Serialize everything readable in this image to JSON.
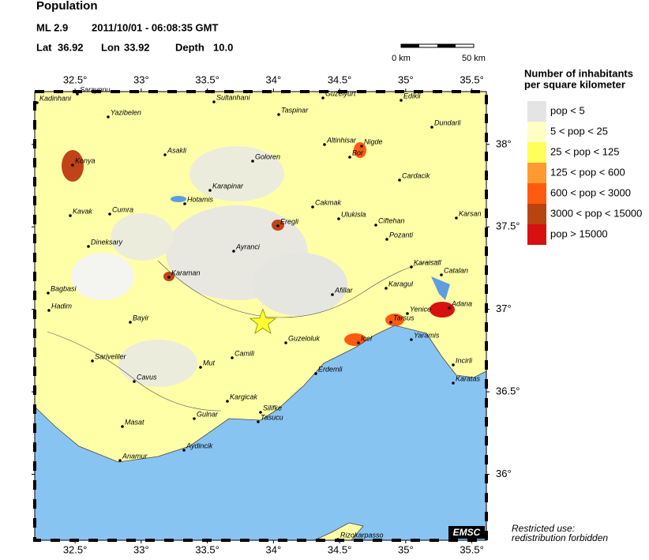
{
  "header": {
    "title": "Population",
    "magnitude": "ML 2.9",
    "datetime": "2011/10/01 - 06:08:35 GMT",
    "lat_label": "Lat",
    "lat": 36.92,
    "lon_label": "Lon",
    "lon": 33.92,
    "depth_label": "Depth",
    "depth": "10.0"
  },
  "scale": {
    "start": "0 km",
    "end": "50 km"
  },
  "map": {
    "lonlim": [
      32.195,
      35.61
    ],
    "latlim": [
      35.6,
      38.32
    ],
    "lon_ticks": [
      {
        "value": 32.5,
        "label": "32.5°"
      },
      {
        "value": 33,
        "label": "33°"
      },
      {
        "value": 33.5,
        "label": "33.5°"
      },
      {
        "value": 34,
        "label": "34°"
      },
      {
        "value": 34.5,
        "label": "34.5°"
      },
      {
        "value": 35,
        "label": "35°"
      },
      {
        "value": 35.5,
        "label": "35.5°"
      }
    ],
    "lat_ticks": [
      {
        "value": 38,
        "label": "38°"
      },
      {
        "value": 37.5,
        "label": "37.5°"
      },
      {
        "value": 37,
        "label": "37°"
      },
      {
        "value": 36.5,
        "label": "36.5°"
      },
      {
        "value": 36,
        "label": "36°"
      }
    ],
    "cities": [
      "Kadinhani",
      "Sarayonu",
      "Yazibelen",
      "Sultanhani",
      "Taspinar",
      "Guzelyurt",
      "Edikli",
      "Dundarli",
      "Konya",
      "Asakli",
      "Goloren",
      "Altinhisar",
      "Nigde",
      "Bor",
      "Karapinar",
      "Hotamis",
      "Cakmak",
      "Cardacik",
      "Kavak",
      "Cumra",
      "Eregli",
      "Ulukisla",
      "Ciftehan",
      "Karsan",
      "Dineksary",
      "Pozanti",
      "Ayranci",
      "Karaisali",
      "Catalan",
      "Karaman",
      "Karagul",
      "Bagbasi",
      "Afillar",
      "Adana",
      "Hadim",
      "Bayir",
      "Yenice",
      "Tarsus",
      "Guzeloluk",
      "Icel",
      "Yaramis",
      "Camili",
      "Sariveliler",
      "Incirli",
      "Mut",
      "Erdemli",
      "Cavus",
      "Karatas",
      "Kargicak",
      "Silifke",
      "Tasucu",
      "Gulnar",
      "Masat",
      "Aydincik",
      "Anamur",
      "Rizokarpasso"
    ],
    "badge": "EMSC"
  },
  "legend": {
    "title_line1": "Number of inhabitants",
    "title_line2": "per square kilometer",
    "items": [
      {
        "label": "pop < 5",
        "color": "#e4e4e4"
      },
      {
        "label": "5 < pop < 25",
        "color": "#ffffc4"
      },
      {
        "label": "25 < pop < 125",
        "color": "#ffff5a"
      },
      {
        "label": "125 < pop < 600",
        "color": "#ff9a30"
      },
      {
        "label": "600 < pop < 3000",
        "color": "#ff5a10"
      },
      {
        "label": "3000 < pop < 15000",
        "color": "#b84412"
      },
      {
        "label": "pop > 15000",
        "color": "#d81010"
      }
    ]
  },
  "notice": {
    "line1": "Restricted use:",
    "line2": "redistribution forbidden"
  }
}
